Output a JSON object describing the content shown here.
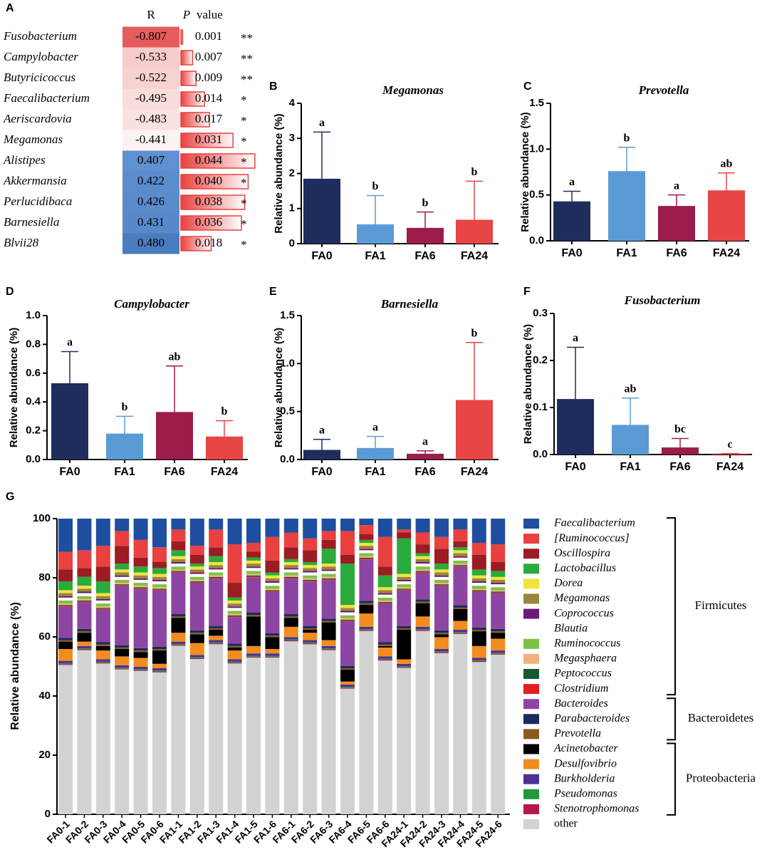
{
  "chart_data": [
    {
      "type": "correlation-table",
      "panel": "A",
      "header_r": "R",
      "header_p": "P",
      "header_value": "value",
      "categories": [
        "Fusobacterium",
        "Campylobacter",
        "Butyricicoccus",
        "Faecalibacterium",
        "Aeriscardovia",
        "Megamonas",
        "Alistipes",
        "Akkermansia",
        "Perlucidibaca",
        "Barnesiella",
        "Blvii28"
      ],
      "r_values": [
        -0.807,
        -0.533,
        -0.522,
        -0.495,
        -0.483,
        -0.441,
        0.407,
        0.422,
        0.426,
        0.431,
        0.48
      ],
      "r_value_labels": [
        "-0.807",
        "-0.533",
        "-0.522",
        "-0.495",
        "-0.483",
        "-0.441",
        "0.407",
        "0.422",
        "0.426",
        "0.431",
        "0.480"
      ],
      "p_values": [
        0.001,
        0.007,
        0.009,
        0.014,
        0.017,
        0.031,
        0.044,
        0.04,
        0.038,
        0.036,
        0.018
      ],
      "p_value_labels": [
        "0.001",
        "0.007",
        "0.009",
        "0.014",
        "0.017",
        "0.031",
        "0.044",
        "0.040",
        "0.038",
        "0.036",
        "0.018"
      ],
      "significance": [
        "**",
        "**",
        "**",
        "*",
        "*",
        "*",
        "*",
        "*",
        "*",
        "*",
        "*"
      ],
      "color_negative": "#e65c5c",
      "color_positive": "#4a7cc0",
      "p_bar_color": "#e8413f"
    },
    {
      "type": "bar",
      "panel": "B",
      "title": "Megamonas",
      "ylabel": "Relative abundance (%)",
      "categories": [
        "FA0",
        "FA1",
        "FA6",
        "FA24"
      ],
      "values": [
        1.85,
        0.55,
        0.45,
        0.68
      ],
      "errors": [
        1.33,
        0.82,
        0.45,
        1.1
      ],
      "letters": [
        "a",
        "b",
        "b",
        "b"
      ],
      "colors": [
        "#1f2d5c",
        "#5b9bd5",
        "#9b1b4a",
        "#e84545"
      ],
      "ylim": [
        0,
        4
      ],
      "yticks": [
        0,
        1,
        2,
        3,
        4
      ]
    },
    {
      "type": "bar",
      "panel": "C",
      "title": "Prevotella",
      "ylabel": "Relative abundance (%)",
      "categories": [
        "FA0",
        "FA1",
        "FA6",
        "FA24"
      ],
      "values": [
        0.43,
        0.76,
        0.38,
        0.55
      ],
      "errors": [
        0.11,
        0.26,
        0.12,
        0.19
      ],
      "letters": [
        "a",
        "b",
        "a",
        "ab"
      ],
      "colors": [
        "#1f2d5c",
        "#5b9bd5",
        "#9b1b4a",
        "#e84545"
      ],
      "ylim": [
        0,
        1.5
      ],
      "yticks": [
        {
          "value": 0,
          "label": "0.0"
        },
        0.5,
        {
          "value": 1,
          "label": "1.0"
        },
        1.5
      ]
    },
    {
      "type": "bar",
      "panel": "D",
      "title": "Campylobacter",
      "ylabel": "Relative abundance (%)",
      "categories": [
        "FA0",
        "FA1",
        "FA6",
        "FA24"
      ],
      "values": [
        0.53,
        0.18,
        0.33,
        0.16
      ],
      "errors": [
        0.22,
        0.12,
        0.32,
        0.11
      ],
      "letters": [
        "a",
        "b",
        "ab",
        "b"
      ],
      "colors": [
        "#1f2d5c",
        "#5b9bd5",
        "#9b1b4a",
        "#e84545"
      ],
      "ylim": [
        0,
        1
      ],
      "yticks": [
        {
          "value": 0,
          "label": "0.0"
        },
        0.2,
        0.4,
        0.6,
        0.8,
        {
          "value": 1,
          "label": "1.0"
        }
      ]
    },
    {
      "type": "bar",
      "panel": "E",
      "title": "Barnesiella",
      "ylabel": "Relative abundance (%)",
      "categories": [
        "FA0",
        "FA1",
        "FA6",
        "FA24"
      ],
      "values": [
        0.1,
        0.12,
        0.06,
        0.62
      ],
      "errors": [
        0.11,
        0.12,
        0.03,
        0.6
      ],
      "letters": [
        "a",
        "a",
        "a",
        "b"
      ],
      "colors": [
        "#1f2d5c",
        "#5b9bd5",
        "#9b1b4a",
        "#e84545"
      ],
      "ylim": [
        0,
        1.5
      ],
      "yticks": [
        {
          "value": 0,
          "label": "0.0"
        },
        0.5,
        {
          "value": 1,
          "label": "1.0"
        },
        1.5
      ]
    },
    {
      "type": "bar",
      "panel": "F",
      "title": "Fusobacterium",
      "ylabel": "Relative abundance (%)",
      "categories": [
        "FA0",
        "FA1",
        "FA6",
        "FA24"
      ],
      "values": [
        0.118,
        0.063,
        0.015,
        0.002
      ],
      "errors": [
        0.11,
        0.057,
        0.019,
        0
      ],
      "letters": [
        "a",
        "ab",
        "bc",
        "c"
      ],
      "colors": [
        "#1f2d5c",
        "#5b9bd5",
        "#9b1b4a",
        "#e84545"
      ],
      "ylim": [
        0,
        0.3
      ],
      "yticks": [
        {
          "value": 0,
          "label": "0.0"
        },
        0.1,
        0.2,
        0.3
      ]
    },
    {
      "type": "stacked-bar",
      "panel": "G",
      "ylabel": "Relative abundance (%)",
      "categories": [
        "FA0-1",
        "FA0-2",
        "FA0-3",
        "FA0-4",
        "FA0-5",
        "FA0-6",
        "FA1-1",
        "FA1-2",
        "FA1-3",
        "FA1-4",
        "FA1-5",
        "FA1-6",
        "FA6-1",
        "FA6-2",
        "FA6-3",
        "FA6-4",
        "FA6-5",
        "FA6-6",
        "FA24-1",
        "FA24-2",
        "FA24-3",
        "FA24-4",
        "FA24-5",
        "FA24-6"
      ],
      "ylim": [
        0,
        100
      ],
      "yticks": [
        0,
        20,
        40,
        60,
        80,
        100
      ],
      "groups": [
        {
          "name": "Firmicutes",
          "series": [
            {
              "name": "Faecalibacterium",
              "color": "#1f4ea1",
              "values": [
                11.2,
                10.7,
                9.2,
                4.2,
                7.2,
                9.7,
                3.7,
                9.2,
                3.7,
                8.7,
                8.2,
                6.2,
                4.7,
                6.7,
                4.2,
                4.2,
                2.2,
                6.2,
                3.7,
                4.7,
                6.2,
                3.7,
                8.2,
                8.7
              ]
            },
            {
              "name": "[Ruminococcus]",
              "color": "#e8413f",
              "values": [
                6,
                6,
                7,
                5,
                6,
                5,
                4,
                3,
                6,
                13,
                3,
                8,
                5,
                4,
                3,
                8,
                3,
                10,
                1,
                4,
                4,
                4,
                4,
                6
              ]
            },
            {
              "name": "Oscillospira",
              "color": "#9b1c22",
              "values": [
                4,
                3,
                5,
                6,
                3,
                2,
                3,
                3,
                3,
                5,
                2,
                4,
                4,
                4,
                3,
                3,
                2,
                3,
                2,
                3,
                5,
                2,
                5,
                3
              ]
            },
            {
              "name": "Lactobacillus",
              "color": "#2aab3c",
              "values": [
                3,
                3,
                4,
                2,
                2,
                2,
                2,
                1,
                2,
                1,
                1,
                1,
                1,
                1,
                5,
                14,
                1,
                4,
                12,
                1,
                2,
                1,
                2,
                2
              ]
            },
            {
              "name": "Dorea",
              "color": "#f1e33f",
              "values": [
                1,
                1,
                1,
                1,
                1,
                1,
                1,
                1,
                1,
                1,
                1,
                1,
                1,
                1,
                1,
                1,
                1,
                1,
                1,
                1,
                1,
                1,
                1,
                1
              ]
            },
            {
              "name": "Megamonas",
              "color": "#9a8639",
              "values": [
                1,
                1,
                1,
                1,
                1,
                1,
                1,
                1,
                1,
                1,
                1,
                1,
                1,
                1,
                1,
                1,
                1,
                1,
                1,
                1,
                1,
                1,
                1,
                1
              ]
            },
            {
              "name": "Coprococcus",
              "color": "#6a1a7a",
              "values": [
                0.5,
                0.5,
                0.5,
                0.5,
                0.5,
                0.5,
                0.5,
                0.5,
                0.5,
                0.5,
                0.5,
                0.5,
                0.5,
                0.5,
                0.5,
                0.5,
                0.5,
                0.5,
                0.5,
                0.5,
                0.5,
                0.5,
                0.5,
                0.5
              ]
            },
            {
              "name": "Blautia",
              "color": "#ffffff",
              "values": [
                1,
                1,
                1,
                1,
                1,
                1,
                1,
                1,
                1,
                1,
                1,
                1,
                1,
                1,
                1,
                1,
                1,
                1,
                1,
                1,
                1,
                1,
                1,
                1
              ]
            },
            {
              "name": "Ruminococcus",
              "color": "#7dc242",
              "values": [
                1,
                1,
                1,
                1,
                1,
                1,
                1,
                1,
                1,
                1,
                1,
                1,
                1,
                1,
                1,
                1,
                1,
                1,
                1,
                1,
                1,
                1,
                1,
                1
              ]
            },
            {
              "name": "Megasphaera",
              "color": "#f0b37e",
              "values": [
                0.5,
                0.5,
                0.5,
                0.5,
                0.5,
                0.5,
                0.5,
                0.5,
                0.5,
                0.5,
                0.5,
                0.5,
                0.5,
                0.5,
                0.5,
                0.5,
                0.5,
                0.5,
                0.5,
                0.5,
                0.5,
                0.5,
                0.5,
                0.5
              ]
            },
            {
              "name": "Peptococcus",
              "color": "#16582f",
              "values": [
                0.3,
                0.3,
                0.3,
                0.3,
                0.3,
                0.3,
                0.3,
                0.3,
                0.3,
                0.3,
                0.3,
                0.3,
                0.3,
                0.3,
                0.3,
                0.3,
                0.3,
                0.3,
                0.3,
                0.3,
                0.3,
                0.3,
                0.3,
                0.3
              ]
            },
            {
              "name": "Clostridium",
              "color": "#e11f26",
              "values": [
                0.3,
                0.3,
                0.3,
                0.3,
                0.3,
                0.3,
                0.3,
                0.3,
                0.3,
                0.3,
                0.3,
                0.3,
                0.3,
                0.3,
                0.3,
                0.3,
                0.3,
                0.3,
                0.3,
                0.3,
                0.3,
                0.3,
                0.3,
                0.3
              ]
            }
          ]
        },
        {
          "name": "Bacteroidetes",
          "series": [
            {
              "name": "Bacteroides",
              "color": "#8c45a3",
              "values": [
                10.5,
                9,
                11,
                20,
                20,
                19,
                14,
                16,
                16,
                9,
                12,
                14,
                12,
                15,
                13,
                15,
                14,
                13,
                12,
                9,
                15,
                13,
                12,
                12
              ]
            },
            {
              "name": "Parabacteroides",
              "color": "#1b2a5a",
              "values": [
                0.8,
                0.8,
                0.8,
                0.8,
                0.8,
                0.8,
                0.8,
                0.8,
                0.8,
                0.8,
                0.8,
                0.8,
                0.8,
                0.8,
                0.8,
                0.8,
                0.8,
                0.8,
                0.8,
                0.8,
                0.8,
                0.8,
                0.8,
                0.8
              ]
            },
            {
              "name": "Prevotella",
              "color": "#8b5a1f",
              "values": [
                0.5,
                0.5,
                0.5,
                0.5,
                0.5,
                0.5,
                0.5,
                0.5,
                0.5,
                0.5,
                0.5,
                0.5,
                0.5,
                0.5,
                0.5,
                0.5,
                0.5,
                0.5,
                0.5,
                0.5,
                0.5,
                0.5,
                0.5,
                0.5
              ]
            }
          ]
        },
        {
          "name": "Proteobacteria",
          "series": [
            {
              "name": "Acinetobacter",
              "color": "#000000",
              "values": [
                2.5,
                3,
                1.5,
                2.5,
                2,
                4.5,
                5,
                3,
                2,
                1,
                10,
                4,
                3,
                1,
                6,
                4,
                3,
                0.5,
                10,
                4.5,
                1,
                4,
                5,
                2
              ]
            },
            {
              "name": "Desulfovibrio",
              "color": "#f28c1f",
              "values": [
                4,
                1.5,
                3,
                3,
                3,
                1.5,
                3,
                4,
                1.5,
                3,
                2.5,
                1.5,
                3.5,
                2.5,
                2,
                1,
                4.5,
                3,
                1.5,
                3.5,
                4,
                3,
                4,
                4
              ]
            },
            {
              "name": "Burkholderia",
              "color": "#4b3390",
              "values": [
                0.8,
                0.8,
                0.8,
                0.8,
                0.8,
                0.8,
                0.8,
                0.8,
                0.8,
                0.8,
                0.8,
                0.8,
                0.8,
                0.8,
                0.8,
                0.8,
                0.8,
                0.8,
                0.8,
                0.8,
                0.8,
                0.8,
                0.8,
                0.8
              ]
            },
            {
              "name": "Pseudomonas",
              "color": "#1d9a3b",
              "values": [
                0.3,
                0.3,
                0.3,
                0.3,
                0.3,
                0.3,
                0.3,
                0.3,
                0.3,
                0.3,
                0.3,
                0.3,
                0.3,
                0.3,
                0.3,
                0.3,
                0.3,
                0.3,
                0.3,
                0.3,
                0.3,
                0.3,
                0.3,
                0.3
              ]
            },
            {
              "name": "Stenotrophomonas",
              "color": "#b5174b",
              "values": [
                0.3,
                0.3,
                0.3,
                0.3,
                0.3,
                0.3,
                0.3,
                0.3,
                0.3,
                0.3,
                0.3,
                0.3,
                0.3,
                0.3,
                0.3,
                0.3,
                0.3,
                0.3,
                0.3,
                0.3,
                0.3,
                0.3,
                0.3,
                0.3
              ]
            }
          ]
        },
        {
          "series": [
            {
              "name": "other",
              "color": "#d3d3d3",
              "values": [
                50.5,
                55.5,
                51,
                49,
                48.5,
                48,
                57,
                52.5,
                57.5,
                51,
                53,
                53,
                58.5,
                57.5,
                55.5,
                42.5,
                62,
                52,
                49.5,
                62,
                54.5,
                61,
                51.5,
                54
              ]
            }
          ]
        }
      ]
    }
  ]
}
